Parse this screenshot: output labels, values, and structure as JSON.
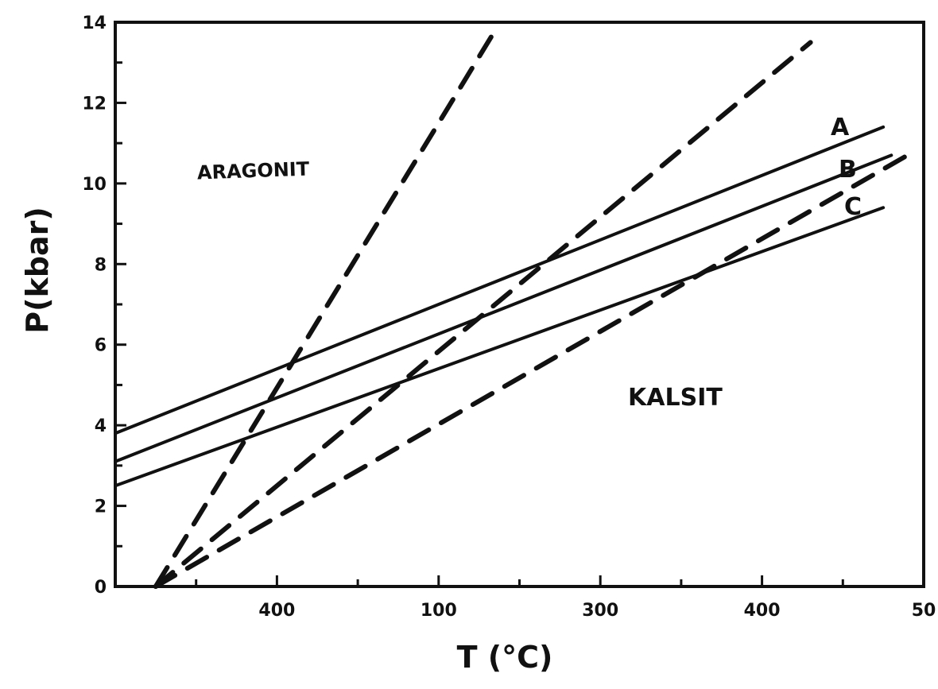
{
  "chart_data": {
    "type": "line",
    "xlabel": "T (°C)",
    "ylabel": "P(kbar)",
    "xlim": [
      0,
      500
    ],
    "ylim": [
      0,
      14
    ],
    "x_tick_labels": [
      "400",
      "100",
      "300",
      "400",
      "50"
    ],
    "y_tick_labels": [
      "0",
      "2",
      "4",
      "6",
      "8",
      "10",
      "12",
      "14"
    ],
    "region_labels": [
      "ARAGONIT",
      "KALSIT"
    ],
    "series": [
      {
        "name": "A",
        "style": "solid",
        "x": [
          0,
          475
        ],
        "y": [
          3.8,
          11.4
        ]
      },
      {
        "name": "B",
        "style": "solid",
        "x": [
          0,
          480
        ],
        "y": [
          3.1,
          10.7
        ]
      },
      {
        "name": "C",
        "style": "solid",
        "x": [
          0,
          475
        ],
        "y": [
          2.5,
          9.4
        ]
      },
      {
        "label": "",
        "style": "dashed",
        "x": [
          25,
          235
        ],
        "y": [
          0,
          13.8
        ]
      },
      {
        "label": "",
        "style": "dashed",
        "x": [
          25,
          430
        ],
        "y": [
          0,
          13.5
        ]
      },
      {
        "label": "",
        "style": "dashed",
        "x": [
          25,
          490
        ],
        "y": [
          0,
          10.7
        ]
      }
    ],
    "grid": false,
    "colors": {
      "line": "#111111",
      "background": "#ffffff"
    }
  }
}
